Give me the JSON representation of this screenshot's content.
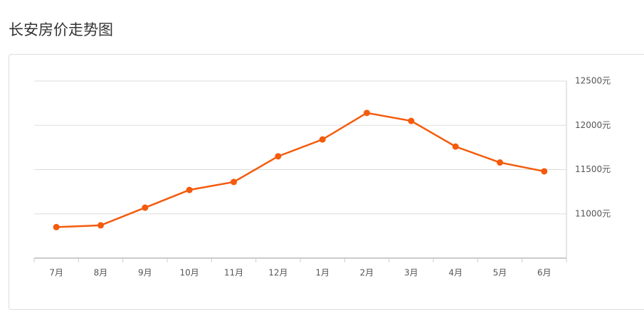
{
  "chart_data": {
    "type": "line",
    "title": "长安房价走势图",
    "categories": [
      "7月",
      "8月",
      "9月",
      "10月",
      "11月",
      "12月",
      "1月",
      "2月",
      "3月",
      "4月",
      "5月",
      "6月"
    ],
    "series": [
      {
        "name": "长安",
        "color": "#f45b0c",
        "values": [
          10850,
          10870,
          11070,
          11270,
          11360,
          11650,
          11840,
          12140,
          12050,
          11760,
          11580,
          11480
        ]
      }
    ],
    "ylim": [
      10500,
      12500
    ],
    "yticks": [
      {
        "value": 11000,
        "label": "11000元"
      },
      {
        "value": 11500,
        "label": "11500元"
      },
      {
        "value": 12000,
        "label": "12000元"
      },
      {
        "value": 12500,
        "label": "12500元"
      }
    ],
    "grid": true
  }
}
